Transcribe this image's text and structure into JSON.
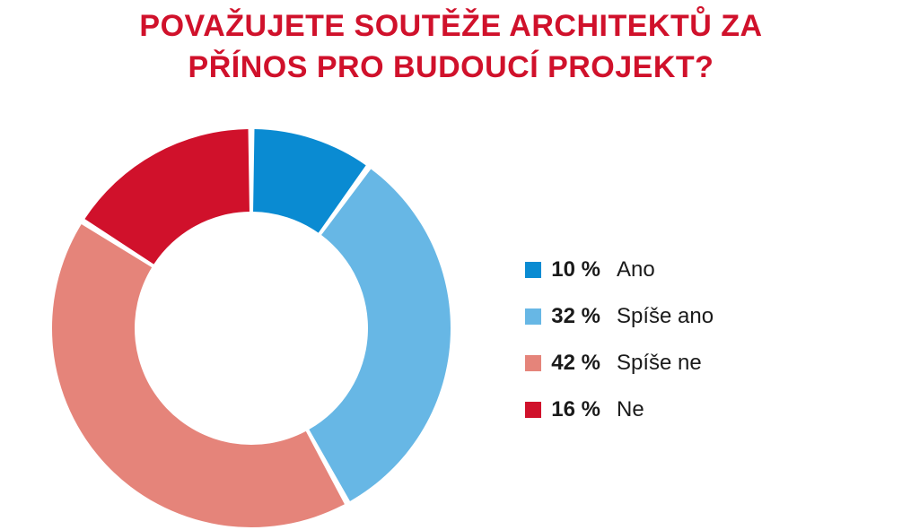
{
  "title": {
    "line1": "POVAŽUJETE SOUTĚŽE ARCHITEKTŮ ZA",
    "line2": "PŘÍNOS PRO BUDOUCÍ PROJEKT?"
  },
  "colors": {
    "title": "#d0112b",
    "text": "#1a1a1a",
    "background": "#ffffff"
  },
  "chart_data": {
    "type": "pie",
    "variant": "donut",
    "title": "POVAŽUJETE SOUTĚŽE ARCHITEKTŮ ZA PŘÍNOS PRO BUDOUCÍ PROJEKT?",
    "unit": "%",
    "legend_position": "right",
    "slices": [
      {
        "label": "Ano",
        "value": 10,
        "value_label": "10 %",
        "color": "#0a8bd2"
      },
      {
        "label": "Spíše ano",
        "value": 32,
        "value_label": "32 %",
        "color": "#67b7e5"
      },
      {
        "label": "Spíše ne",
        "value": 42,
        "value_label": "42 %",
        "color": "#e5847a"
      },
      {
        "label": "Ne",
        "value": 16,
        "value_label": "16 %",
        "color": "#d0112b"
      }
    ]
  }
}
